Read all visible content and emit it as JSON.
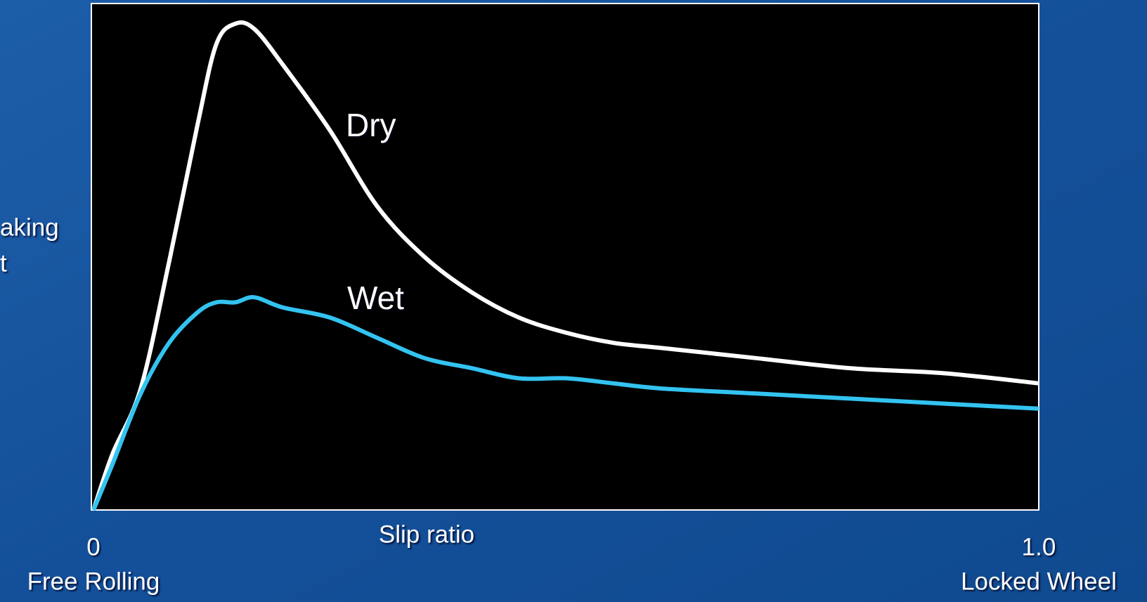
{
  "chart_data": {
    "type": "line",
    "xlabel": "Slip ratio",
    "ylabel": [
      "aking",
      "t"
    ],
    "x": [
      0,
      0.02,
      0.05,
      0.08,
      0.11,
      0.13,
      0.15,
      0.17,
      0.2,
      0.25,
      0.3,
      0.35,
      0.4,
      0.45,
      0.5,
      0.55,
      0.6,
      0.7,
      0.8,
      0.9,
      1.0
    ],
    "series": [
      {
        "name": "Dry",
        "color": "#ffffff",
        "values": [
          0,
          0.11,
          0.24,
          0.49,
          0.76,
          0.92,
          0.96,
          0.95,
          0.88,
          0.75,
          0.6,
          0.5,
          0.43,
          0.38,
          0.35,
          0.33,
          0.32,
          0.3,
          0.28,
          0.27,
          0.25
        ]
      },
      {
        "name": "Wet",
        "color": "#33c3f0",
        "values": [
          0,
          0.09,
          0.23,
          0.33,
          0.39,
          0.41,
          0.41,
          0.42,
          0.4,
          0.38,
          0.34,
          0.3,
          0.28,
          0.26,
          0.26,
          0.25,
          0.24,
          0.23,
          0.22,
          0.21,
          0.2
        ]
      }
    ],
    "xlim": [
      0,
      1
    ],
    "ylim": [
      0,
      1
    ],
    "xticks": [
      0,
      {
        "value": 1,
        "label": "1.0"
      }
    ],
    "xtick_notes": [
      "Free Rolling",
      "Locked Wheel"
    ]
  }
}
